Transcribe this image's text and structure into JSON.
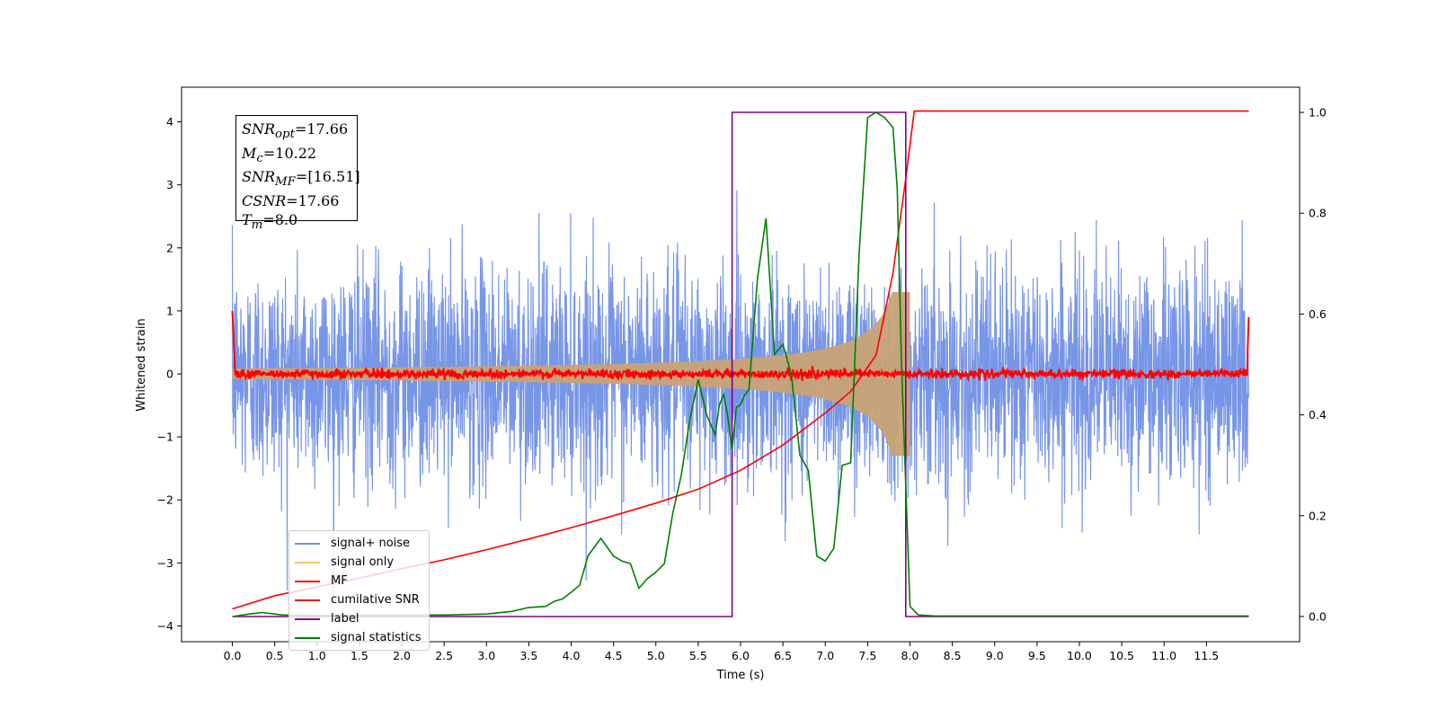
{
  "chart_data": {
    "type": "line",
    "xlabel": "Time (s)",
    "ylabel": "Whitened strain",
    "xlim": [
      -0.6,
      12.6
    ],
    "ylim": [
      -4.25,
      4.55
    ],
    "y2lim": [
      -0.05,
      1.05
    ],
    "x_ticks": [
      "0.0",
      "0.5",
      "1.0",
      "1.5",
      "2.0",
      "2.5",
      "3.0",
      "3.5",
      "4.0",
      "4.5",
      "5.0",
      "5.5",
      "6.0",
      "6.5",
      "7.0",
      "7.5",
      "8.0",
      "8.5",
      "9.0",
      "9.5",
      "10.0",
      "10.5",
      "11.0",
      "11.5"
    ],
    "y_ticks": [
      "−4",
      "−3",
      "−2",
      "−1",
      "0",
      "1",
      "2",
      "3",
      "4"
    ],
    "y2_ticks": [
      "0.0",
      "0.2",
      "0.4",
      "0.6",
      "0.8",
      "1.0"
    ],
    "annotation": [
      {
        "sym": "SNR",
        "sub": "opt",
        "val": "=17.66"
      },
      {
        "sym": "M",
        "sub": "c",
        "val": "=10.22"
      },
      {
        "sym": "SNR",
        "sub": "MF",
        "val": "=[16.51]"
      },
      {
        "sym": "CSNR",
        "sub": "",
        "val": "=17.66"
      },
      {
        "sym": "T",
        "sub": "m",
        "val": "=8.0"
      }
    ],
    "legend": [
      {
        "label": "signal+ noise",
        "color": "#7190e6"
      },
      {
        "label": "signal only",
        "color": "#f5c56b"
      },
      {
        "label": "MF",
        "color": "#ff0000"
      },
      {
        "label": "cumilative SNR",
        "color": "#ff0000"
      },
      {
        "label": "label",
        "color": "#800080"
      },
      {
        "label": "signal statistics",
        "color": "#008000"
      }
    ],
    "series": [
      {
        "axis": "left",
        "kind": "noise",
        "std": 0.85,
        "t_range": [
          0,
          12
        ],
        "color": "#7190e6"
      },
      {
        "axis": "left",
        "kind": "chirp",
        "t_range": [
          0,
          8
        ],
        "peak": 1.3,
        "color": "#c8a276"
      },
      {
        "axis": "left",
        "kind": "mf",
        "t_range": [
          0,
          12
        ],
        "color": "#ff0000"
      },
      {
        "axis": "left",
        "kind": "cumulative",
        "color": "#ff0000",
        "x": [
          0.0,
          0.5,
          1.0,
          1.5,
          2.0,
          2.5,
          3.0,
          3.5,
          4.0,
          4.5,
          5.0,
          5.5,
          6.0,
          6.5,
          7.0,
          7.3,
          7.6,
          7.8,
          7.95,
          8.05,
          12.0
        ],
        "y": [
          -3.73,
          -3.52,
          -3.38,
          -3.24,
          -3.09,
          -2.95,
          -2.79,
          -2.62,
          -2.44,
          -2.25,
          -2.05,
          -1.83,
          -1.53,
          -1.13,
          -0.62,
          -0.28,
          0.3,
          1.6,
          3.1,
          4.17,
          4.17
        ]
      },
      {
        "axis": "right",
        "kind": "label",
        "color": "#800080",
        "x": [
          0.0,
          5.9,
          5.9,
          7.95,
          7.95,
          12.0
        ],
        "y": [
          0,
          0,
          1,
          1,
          0,
          0
        ]
      },
      {
        "axis": "right",
        "kind": "statistics",
        "color": "#008000",
        "x": [
          0.0,
          0.2,
          0.35,
          0.6,
          1.0,
          2.0,
          2.5,
          3.0,
          3.3,
          3.5,
          3.7,
          3.8,
          3.9,
          4.0,
          4.1,
          4.2,
          4.35,
          4.5,
          4.6,
          4.7,
          4.8,
          4.9,
          5.0,
          5.1,
          5.2,
          5.3,
          5.4,
          5.5,
          5.6,
          5.7,
          5.75,
          5.8,
          5.85,
          5.9,
          5.95,
          6.0,
          6.05,
          6.1,
          6.2,
          6.3,
          6.4,
          6.5,
          6.6,
          6.7,
          6.8,
          6.9,
          7.0,
          7.1,
          7.2,
          7.3,
          7.4,
          7.5,
          7.6,
          7.7,
          7.8,
          7.85,
          7.9,
          8.0,
          8.1,
          8.3,
          10.0,
          12.0
        ],
        "y": [
          0.0,
          0.005,
          0.008,
          0.003,
          0.002,
          0.003,
          0.003,
          0.005,
          0.01,
          0.018,
          0.02,
          0.03,
          0.035,
          0.048,
          0.062,
          0.121,
          0.155,
          0.12,
          0.11,
          0.105,
          0.056,
          0.075,
          0.088,
          0.105,
          0.205,
          0.28,
          0.39,
          0.47,
          0.4,
          0.36,
          0.42,
          0.44,
          0.395,
          0.33,
          0.415,
          0.42,
          0.44,
          0.45,
          0.67,
          0.79,
          0.52,
          0.54,
          0.48,
          0.32,
          0.29,
          0.12,
          0.11,
          0.135,
          0.3,
          0.305,
          0.72,
          0.99,
          1.0,
          0.99,
          0.97,
          0.85,
          0.5,
          0.02,
          0.003,
          0.001,
          0.001,
          0.001
        ]
      }
    ]
  }
}
